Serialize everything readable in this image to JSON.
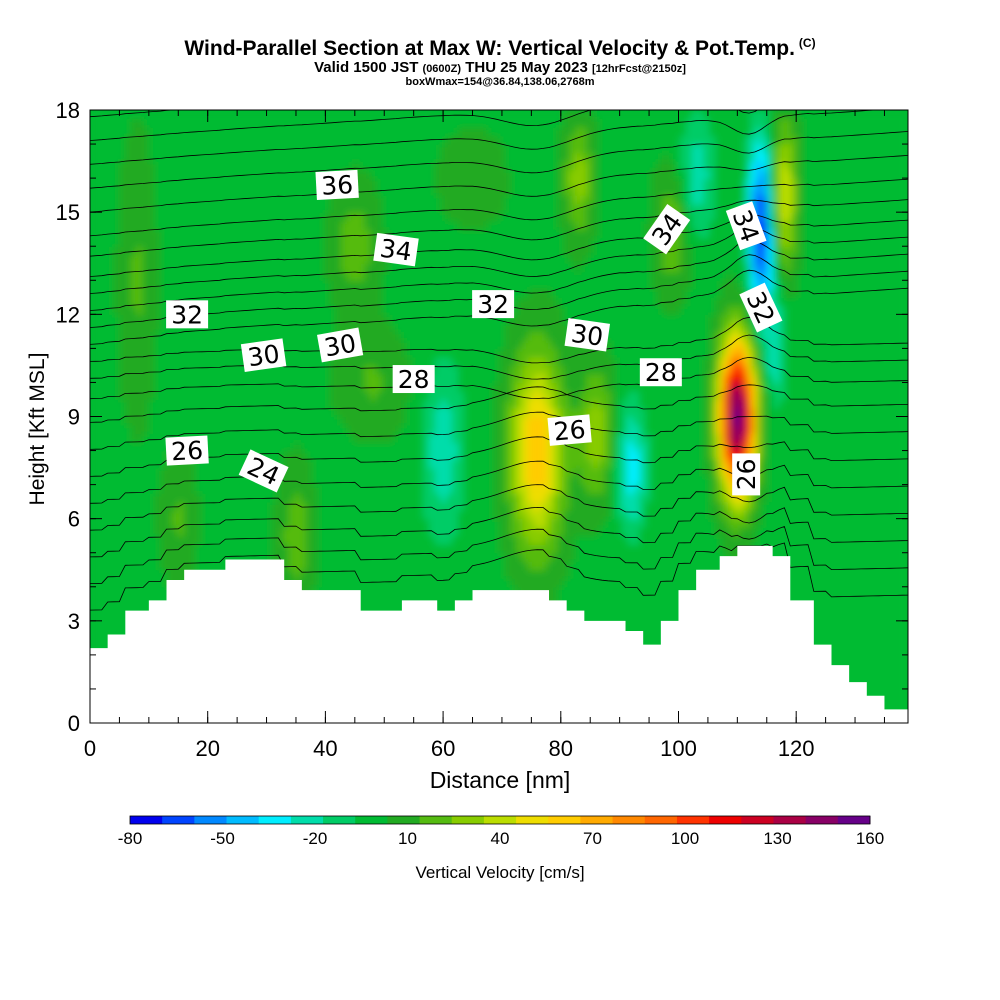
{
  "header": {
    "title": "Wind-Parallel Section at Max W: Vertical Velocity & Pot.Temp.",
    "copyright": "(C)",
    "valid_prefix": "Valid 1500 JST",
    "valid_zulu": "(0600Z)",
    "valid_date": "THU 25 May 2023",
    "forecast_info": "[12hrFcst@2150z]",
    "box_info": "boxWmax=154@36.84,138.06,2768m"
  },
  "colorbar": {
    "label": "Vertical Velocity [cm/s]",
    "tick_labels": [
      "-80",
      "-50",
      "-20",
      "10",
      "40",
      "70",
      "100",
      "130",
      "160"
    ],
    "colors": [
      "#0000ee",
      "#0044ff",
      "#0088ff",
      "#00bbff",
      "#00eeff",
      "#00ddaa",
      "#00cc66",
      "#00bb33",
      "#22aa22",
      "#55bb11",
      "#88cc00",
      "#bbdd00",
      "#eedd00",
      "#ffcc00",
      "#ffaa00",
      "#ff8800",
      "#ff6600",
      "#ff3300",
      "#ee0000",
      "#cc0022",
      "#aa0044",
      "#880066",
      "#660088"
    ]
  },
  "chart_data": {
    "type": "heatmap",
    "xlabel": "Distance [nm]",
    "ylabel": "Height [Kft MSL]",
    "xlim": [
      0,
      139
    ],
    "ylim": [
      0,
      18
    ],
    "x_ticks": [
      0,
      20,
      40,
      60,
      80,
      100,
      120
    ],
    "y_ticks": [
      0,
      3,
      6,
      9,
      12,
      15,
      18
    ],
    "terrain_profile": {
      "x": [
        0,
        3,
        6,
        10,
        13,
        16,
        19,
        23,
        26,
        30,
        33,
        36,
        39,
        43,
        46,
        50,
        53,
        56,
        59,
        62,
        65,
        68,
        72,
        75,
        78,
        81,
        84,
        87,
        91,
        94,
        97,
        100,
        103,
        107,
        110,
        113,
        116,
        119,
        123,
        126,
        129,
        132,
        135,
        139
      ],
      "height_kft": [
        2.2,
        2.6,
        3.3,
        3.6,
        4.2,
        4.5,
        4.5,
        4.8,
        4.8,
        4.8,
        4.2,
        3.9,
        3.9,
        3.9,
        3.3,
        3.3,
        3.6,
        3.6,
        3.3,
        3.6,
        3.9,
        3.9,
        3.9,
        3.9,
        3.6,
        3.3,
        3.0,
        3.0,
        2.7,
        2.3,
        3.0,
        3.9,
        4.5,
        4.9,
        5.2,
        5.2,
        4.9,
        3.6,
        2.3,
        1.7,
        1.2,
        0.8,
        0.4,
        0.4
      ]
    },
    "vertical_velocity_cm_s": {
      "background": 0,
      "features": [
        {
          "x": 110,
          "y": 9.0,
          "peak": 154
        },
        {
          "x": 76,
          "y": 8.0,
          "peak": 65
        },
        {
          "x": 114,
          "y": 14.5,
          "peak": -70
        },
        {
          "x": 116.5,
          "y": 11.0,
          "peak": -25
        },
        {
          "x": 118,
          "y": 15.5,
          "peak": 45
        },
        {
          "x": 99,
          "y": 14.5,
          "peak": 25
        },
        {
          "x": 83,
          "y": 16.0,
          "peak": 30
        },
        {
          "x": 60,
          "y": 8.0,
          "peak": -25
        },
        {
          "x": 92,
          "y": 7.5,
          "peak": -35
        },
        {
          "x": 86,
          "y": 8.5,
          "peak": 30
        },
        {
          "x": 103,
          "y": 16.0,
          "peak": -25
        },
        {
          "x": 45,
          "y": 14.0,
          "peak": 20
        },
        {
          "x": 48,
          "y": 10.0,
          "peak": 15
        },
        {
          "x": 8,
          "y": 13.0,
          "peak": 15
        },
        {
          "x": 35,
          "y": 5.5,
          "peak": 20
        },
        {
          "x": 15,
          "y": 6.0,
          "peak": 15
        },
        {
          "x": 65,
          "y": 16.0,
          "peak": 10
        }
      ]
    },
    "potential_temperature_contours_C": {
      "labels": [
        {
          "text": "36",
          "x": 42,
          "y": 15.8,
          "angle": -3
        },
        {
          "text": "34",
          "x": 52,
          "y": 13.9,
          "angle": 8
        },
        {
          "text": "34",
          "x": 98,
          "y": 14.5,
          "angle": -55
        },
        {
          "text": "34",
          "x": 111.5,
          "y": 14.6,
          "angle": 70
        },
        {
          "text": "32",
          "x": 16.5,
          "y": 12.0,
          "angle": 0
        },
        {
          "text": "32",
          "x": 68.5,
          "y": 12.3,
          "angle": 0
        },
        {
          "text": "32",
          "x": 114,
          "y": 12.2,
          "angle": 65
        },
        {
          "text": "30",
          "x": 29.5,
          "y": 10.8,
          "angle": -8
        },
        {
          "text": "30",
          "x": 42.5,
          "y": 11.1,
          "angle": -10
        },
        {
          "text": "30",
          "x": 84.5,
          "y": 11.4,
          "angle": 8
        },
        {
          "text": "28",
          "x": 55,
          "y": 10.1,
          "angle": 0
        },
        {
          "text": "28",
          "x": 97,
          "y": 10.3,
          "angle": 0
        },
        {
          "text": "26",
          "x": 16.5,
          "y": 8.0,
          "angle": -3
        },
        {
          "text": "26",
          "x": 81.5,
          "y": 8.6,
          "angle": -5
        },
        {
          "text": "26",
          "x": 111.5,
          "y": 7.3,
          "angle": -90
        },
        {
          "text": "24",
          "x": 29.5,
          "y": 7.4,
          "angle": 25
        }
      ]
    }
  }
}
